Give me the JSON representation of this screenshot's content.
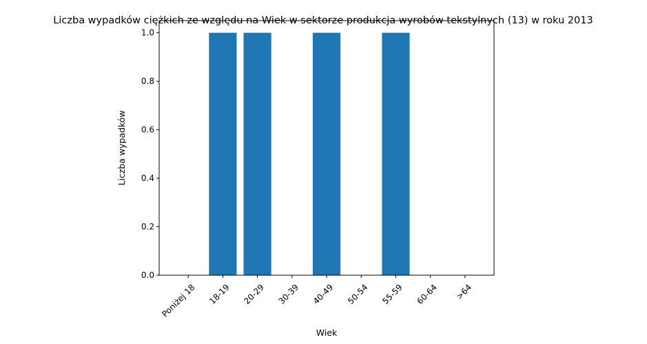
{
  "chart_data": {
    "type": "bar",
    "title": "Liczba wypadków ciężkich ze względu na Wiek w sektorze produkcja wyrobów tekstylnych  (13)   w roku 2013",
    "xlabel": "Wiek",
    "ylabel": "Liczba wypadków",
    "categories": [
      "Poniżej 18",
      "18-19",
      "20-29",
      "30-39",
      "40-49",
      "50-54",
      "55-59",
      "60-64",
      ">64"
    ],
    "values": [
      0,
      1,
      1,
      0,
      1,
      0,
      1,
      0,
      0
    ],
    "ylim": [
      0,
      1.05
    ],
    "yticks": [
      0.0,
      0.2,
      0.4,
      0.6,
      0.8,
      1.0
    ],
    "ytick_labels": [
      "0.0",
      "0.2",
      "0.4",
      "0.6",
      "0.8",
      "1.0"
    ],
    "xtick_rotation_deg": 45,
    "grid": false,
    "bar_color": "#1f77b4"
  }
}
